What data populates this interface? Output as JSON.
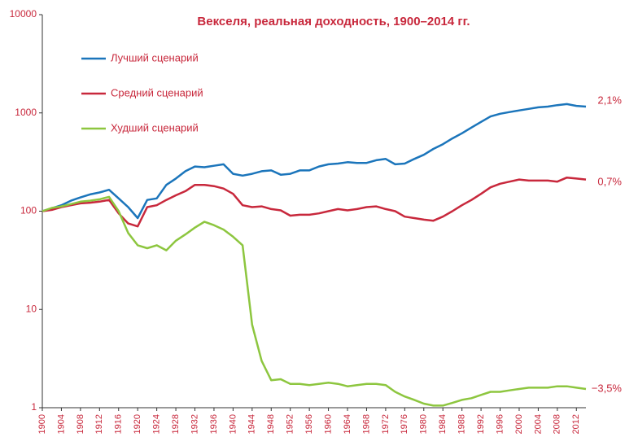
{
  "chart_data": {
    "type": "line",
    "title": "Векселя, реальная доходность, 1900–2014 гг.",
    "log_scale": true,
    "xlim": [
      1900,
      2014
    ],
    "ylim": [
      1,
      10000
    ],
    "yticks": [
      1,
      10,
      100,
      1000,
      10000
    ],
    "xticks": [
      1900,
      1904,
      1908,
      1912,
      1916,
      1920,
      1924,
      1928,
      1932,
      1936,
      1940,
      1944,
      1948,
      1952,
      1956,
      1960,
      1964,
      1968,
      1972,
      1976,
      1980,
      1984,
      1988,
      1992,
      1996,
      2000,
      2004,
      2008,
      2012
    ],
    "x": [
      1900,
      1902,
      1904,
      1906,
      1908,
      1910,
      1912,
      1914,
      1916,
      1918,
      1920,
      1922,
      1924,
      1926,
      1928,
      1930,
      1932,
      1934,
      1936,
      1938,
      1940,
      1942,
      1944,
      1946,
      1948,
      1950,
      1952,
      1954,
      1956,
      1958,
      1960,
      1962,
      1964,
      1966,
      1968,
      1970,
      1972,
      1974,
      1976,
      1978,
      1980,
      1982,
      1984,
      1986,
      1988,
      1990,
      1992,
      1994,
      1996,
      1998,
      2000,
      2002,
      2004,
      2006,
      2008,
      2010,
      2012,
      2014
    ],
    "series": [
      {
        "name": "Лучший сценарий",
        "color": "#1b75bb",
        "values": [
          100,
          107,
          115,
          128,
          138,
          148,
          155,
          165,
          135,
          110,
          85,
          130,
          135,
          185,
          215,
          255,
          285,
          280,
          290,
          300,
          240,
          230,
          240,
          255,
          260,
          235,
          240,
          260,
          260,
          285,
          300,
          305,
          315,
          310,
          310,
          330,
          340,
          300,
          305,
          340,
          375,
          430,
          480,
          550,
          620,
          710,
          810,
          920,
          980,
          1020,
          1060,
          1100,
          1140,
          1160,
          1200,
          1230,
          1180,
          1160
        ]
      },
      {
        "name": "Средний сценарий",
        "color": "#c8283c",
        "values": [
          100,
          103,
          110,
          115,
          120,
          122,
          125,
          130,
          95,
          75,
          70,
          110,
          115,
          130,
          145,
          160,
          185,
          185,
          180,
          170,
          150,
          115,
          110,
          112,
          105,
          102,
          90,
          92,
          92,
          95,
          100,
          105,
          102,
          105,
          110,
          112,
          105,
          100,
          88,
          85,
          82,
          80,
          88,
          100,
          115,
          130,
          150,
          175,
          190,
          200,
          210,
          205,
          205,
          205,
          200,
          220,
          215,
          210
        ]
      },
      {
        "name": "Худший сценарий",
        "color": "#8dc63f",
        "values": [
          100,
          108,
          112,
          118,
          125,
          128,
          132,
          140,
          100,
          60,
          45,
          42,
          45,
          40,
          50,
          58,
          68,
          78,
          72,
          65,
          55,
          45,
          7,
          3,
          1.9,
          1.95,
          1.75,
          1.75,
          1.7,
          1.75,
          1.8,
          1.75,
          1.65,
          1.7,
          1.75,
          1.75,
          1.7,
          1.45,
          1.3,
          1.2,
          1.1,
          1.05,
          1.05,
          1.12,
          1.2,
          1.25,
          1.35,
          1.45,
          1.45,
          1.5,
          1.55,
          1.6,
          1.6,
          1.6,
          1.65,
          1.65,
          1.6,
          1.55
        ]
      }
    ],
    "annotations": [
      "2,1%",
      "0,7%",
      "−3,5%"
    ]
  }
}
